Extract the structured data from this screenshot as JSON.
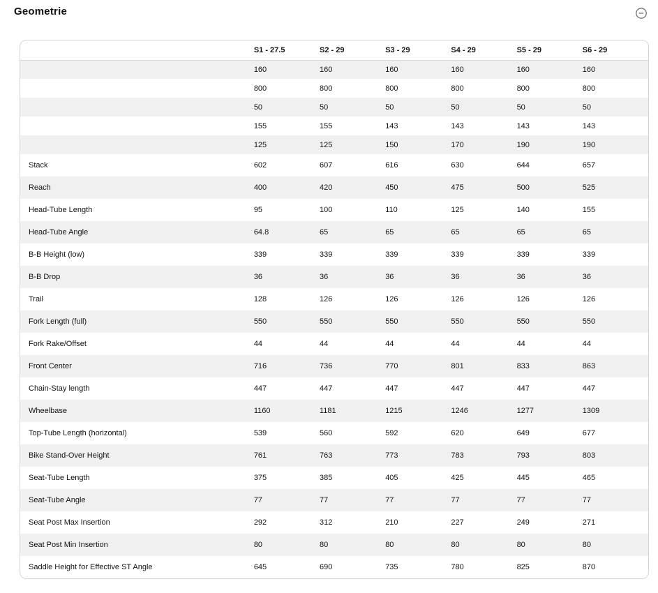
{
  "section": {
    "title": "Geometrie",
    "collapse_icon": "minus-circle-icon"
  },
  "colors": {
    "stripe": "#f0f0f0",
    "card_border": "#d5d5d5",
    "header_divider": "#d9d9d9",
    "text": "#141414",
    "icon": "#6f6f6f"
  },
  "table": {
    "columns": [
      "S1 - 27.5",
      "S2 - 29",
      "S3 - 29",
      "S4 - 29",
      "S5 - 29",
      "S6 - 29"
    ],
    "rows": [
      {
        "label": "",
        "values": [
          "160",
          "160",
          "160",
          "160",
          "160",
          "160"
        ]
      },
      {
        "label": "",
        "values": [
          "800",
          "800",
          "800",
          "800",
          "800",
          "800"
        ]
      },
      {
        "label": "",
        "values": [
          "50",
          "50",
          "50",
          "50",
          "50",
          "50"
        ]
      },
      {
        "label": "",
        "values": [
          "155",
          "155",
          "143",
          "143",
          "143",
          "143"
        ]
      },
      {
        "label": "",
        "values": [
          "125",
          "125",
          "150",
          "170",
          "190",
          "190"
        ]
      },
      {
        "label": "Stack",
        "values": [
          "602",
          "607",
          "616",
          "630",
          "644",
          "657"
        ]
      },
      {
        "label": "Reach",
        "values": [
          "400",
          "420",
          "450",
          "475",
          "500",
          "525"
        ]
      },
      {
        "label": "Head-Tube Length",
        "values": [
          "95",
          "100",
          "110",
          "125",
          "140",
          "155"
        ]
      },
      {
        "label": "Head-Tube Angle",
        "values": [
          "64.8",
          "65",
          "65",
          "65",
          "65",
          "65"
        ]
      },
      {
        "label": "B-B Height (low)",
        "values": [
          "339",
          "339",
          "339",
          "339",
          "339",
          "339"
        ]
      },
      {
        "label": "B-B Drop",
        "values": [
          "36",
          "36",
          "36",
          "36",
          "36",
          "36"
        ]
      },
      {
        "label": "Trail",
        "values": [
          "128",
          "126",
          "126",
          "126",
          "126",
          "126"
        ]
      },
      {
        "label": "Fork Length (full)",
        "values": [
          "550",
          "550",
          "550",
          "550",
          "550",
          "550"
        ]
      },
      {
        "label": "Fork Rake/Offset",
        "values": [
          "44",
          "44",
          "44",
          "44",
          "44",
          "44"
        ]
      },
      {
        "label": "Front Center",
        "values": [
          "716",
          "736",
          "770",
          "801",
          "833",
          "863"
        ]
      },
      {
        "label": "Chain-Stay length",
        "values": [
          "447",
          "447",
          "447",
          "447",
          "447",
          "447"
        ]
      },
      {
        "label": "Wheelbase",
        "values": [
          "1160",
          "1181",
          "1215",
          "1246",
          "1277",
          "1309"
        ]
      },
      {
        "label": "Top-Tube Length (horizontal)",
        "values": [
          "539",
          "560",
          "592",
          "620",
          "649",
          "677"
        ]
      },
      {
        "label": "Bike Stand-Over Height",
        "values": [
          "761",
          "763",
          "773",
          "783",
          "793",
          "803"
        ]
      },
      {
        "label": "Seat-Tube Length",
        "values": [
          "375",
          "385",
          "405",
          "425",
          "445",
          "465"
        ]
      },
      {
        "label": "Seat-Tube Angle",
        "values": [
          "77",
          "77",
          "77",
          "77",
          "77",
          "77"
        ]
      },
      {
        "label": "Seat Post Max Insertion",
        "values": [
          "292",
          "312",
          "210",
          "227",
          "249",
          "271"
        ]
      },
      {
        "label": "Seat Post Min Insertion",
        "values": [
          "80",
          "80",
          "80",
          "80",
          "80",
          "80"
        ]
      },
      {
        "label": "Saddle Height for Effective ST Angle",
        "values": [
          "645",
          "690",
          "735",
          "780",
          "825",
          "870"
        ]
      }
    ]
  }
}
